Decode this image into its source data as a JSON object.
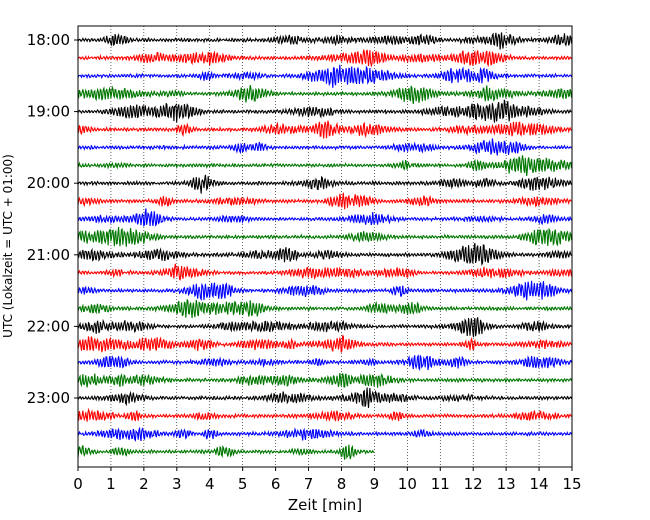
{
  "chart_data": {
    "type": "line",
    "title": "",
    "xlabel": "Zeit  [min]",
    "ylabel": "UTC (Lokalzeit = UTC + 01:00)",
    "xlim": [
      0,
      15
    ],
    "x_ticks": [
      "0",
      "1",
      "2",
      "3",
      "4",
      "5",
      "6",
      "7",
      "8",
      "9",
      "10",
      "11",
      "12",
      "13",
      "14",
      "15"
    ],
    "y_ticks": [
      {
        "label": "18:00",
        "trace": 0
      },
      {
        "label": "19:00",
        "trace": 4
      },
      {
        "label": "20:00",
        "trace": 8
      },
      {
        "label": "21:00",
        "trace": 12
      },
      {
        "label": "22:00",
        "trace": 16
      },
      {
        "label": "23:00",
        "trace": 20
      }
    ],
    "grid": {
      "vertical": true,
      "style": "dotted"
    },
    "trace_interval_min": 15,
    "trace_colors": [
      "#000000",
      "#ff0000",
      "#0000ff",
      "#007700"
    ],
    "series": [
      {
        "start": "18:00",
        "end_min": 15
      },
      {
        "start": "18:15",
        "end_min": 15
      },
      {
        "start": "18:30",
        "end_min": 15
      },
      {
        "start": "18:45",
        "end_min": 15
      },
      {
        "start": "19:00",
        "end_min": 15
      },
      {
        "start": "19:15",
        "end_min": 15
      },
      {
        "start": "19:30",
        "end_min": 15
      },
      {
        "start": "19:45",
        "end_min": 15
      },
      {
        "start": "20:00",
        "end_min": 15
      },
      {
        "start": "20:15",
        "end_min": 15
      },
      {
        "start": "20:30",
        "end_min": 15
      },
      {
        "start": "20:45",
        "end_min": 15
      },
      {
        "start": "21:00",
        "end_min": 15
      },
      {
        "start": "21:15",
        "end_min": 15
      },
      {
        "start": "21:30",
        "end_min": 15
      },
      {
        "start": "21:45",
        "end_min": 15
      },
      {
        "start": "22:00",
        "end_min": 15
      },
      {
        "start": "22:15",
        "end_min": 15
      },
      {
        "start": "22:30",
        "end_min": 15
      },
      {
        "start": "22:45",
        "end_min": 15
      },
      {
        "start": "23:00",
        "end_min": 15
      },
      {
        "start": "23:15",
        "end_min": 15
      },
      {
        "start": "23:30",
        "end_min": 15
      },
      {
        "start": "23:45",
        "end_min": 9
      }
    ]
  }
}
